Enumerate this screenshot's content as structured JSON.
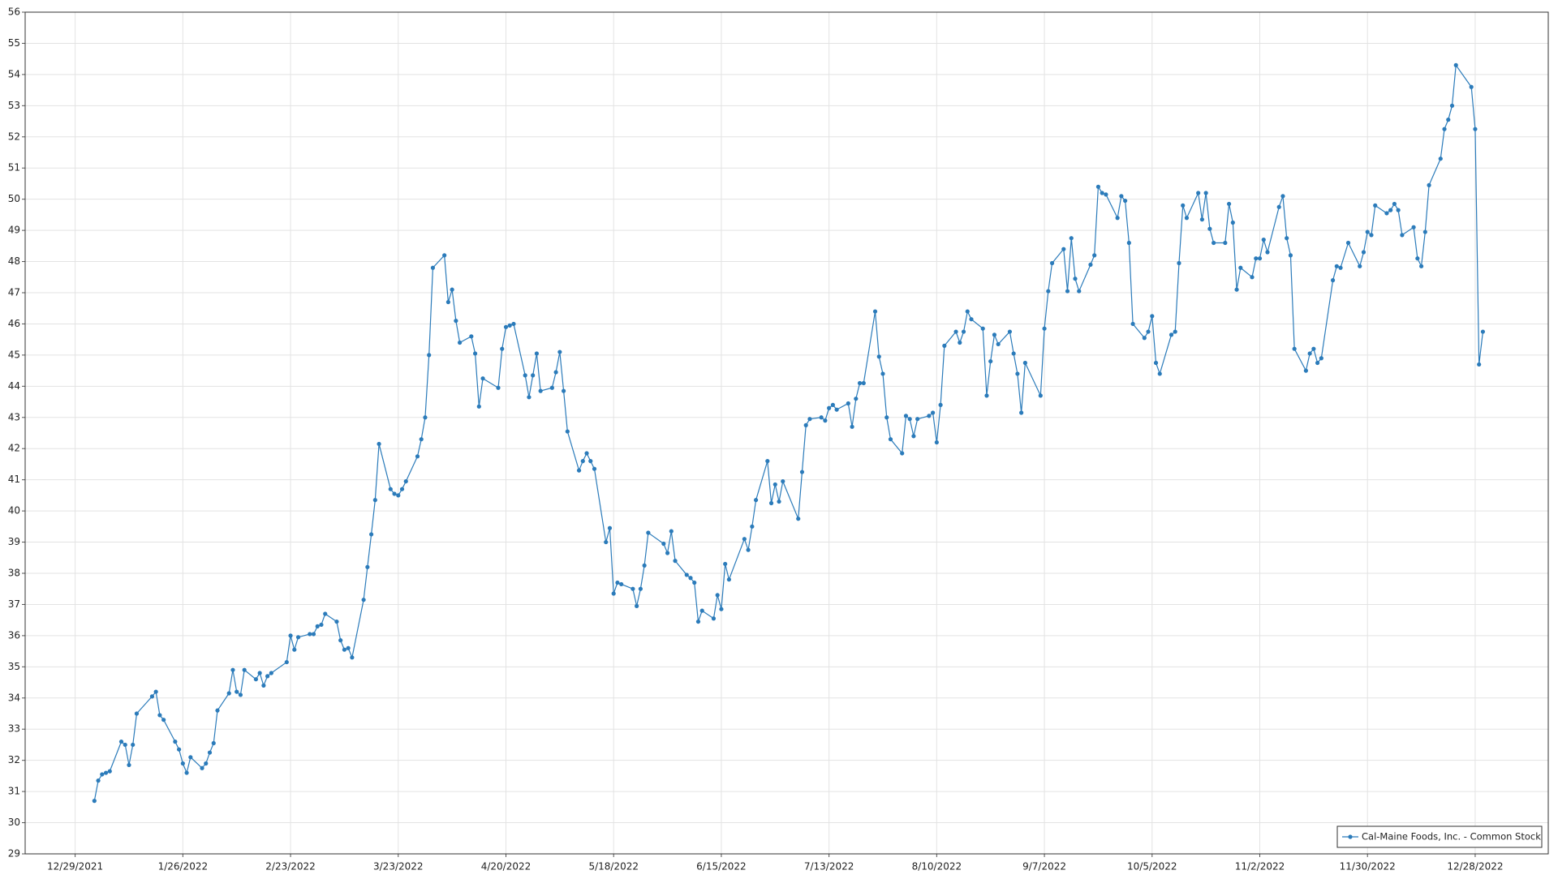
{
  "chart_data": {
    "type": "line",
    "x": [
      "1/3/2022",
      "1/4/2022",
      "1/5/2022",
      "1/6/2022",
      "1/7/2022",
      "1/10/2022",
      "1/11/2022",
      "1/12/2022",
      "1/13/2022",
      "1/14/2022",
      "1/18/2022",
      "1/19/2022",
      "1/20/2022",
      "1/21/2022",
      "1/24/2022",
      "1/25/2022",
      "1/26/2022",
      "1/27/2022",
      "1/28/2022",
      "1/31/2022",
      "2/1/2022",
      "2/2/2022",
      "2/3/2022",
      "2/4/2022",
      "2/7/2022",
      "2/8/2022",
      "2/9/2022",
      "2/10/2022",
      "2/11/2022",
      "2/14/2022",
      "2/15/2022",
      "2/16/2022",
      "2/17/2022",
      "2/18/2022",
      "2/22/2022",
      "2/23/2022",
      "2/24/2022",
      "2/25/2022",
      "2/28/2022",
      "3/1/2022",
      "3/2/2022",
      "3/3/2022",
      "3/4/2022",
      "3/7/2022",
      "3/8/2022",
      "3/9/2022",
      "3/10/2022",
      "3/11/2022",
      "3/14/2022",
      "3/15/2022",
      "3/16/2022",
      "3/17/2022",
      "3/18/2022",
      "3/21/2022",
      "3/22/2022",
      "3/23/2022",
      "3/24/2022",
      "3/25/2022",
      "3/28/2022",
      "3/29/2022",
      "3/30/2022",
      "3/31/2022",
      "4/1/2022",
      "4/4/2022",
      "4/5/2022",
      "4/6/2022",
      "4/7/2022",
      "4/8/2022",
      "4/11/2022",
      "4/12/2022",
      "4/13/2022",
      "4/14/2022",
      "4/18/2022",
      "4/19/2022",
      "4/20/2022",
      "4/21/2022",
      "4/22/2022",
      "4/25/2022",
      "4/26/2022",
      "4/27/2022",
      "4/28/2022",
      "4/29/2022",
      "5/2/2022",
      "5/3/2022",
      "5/4/2022",
      "5/5/2022",
      "5/6/2022",
      "5/9/2022",
      "5/10/2022",
      "5/11/2022",
      "5/12/2022",
      "5/13/2022",
      "5/16/2022",
      "5/17/2022",
      "5/18/2022",
      "5/19/2022",
      "5/20/2022",
      "5/23/2022",
      "5/24/2022",
      "5/25/2022",
      "5/26/2022",
      "5/27/2022",
      "5/31/2022",
      "6/1/2022",
      "6/2/2022",
      "6/3/2022",
      "6/6/2022",
      "6/7/2022",
      "6/8/2022",
      "6/9/2022",
      "6/10/2022",
      "6/13/2022",
      "6/14/2022",
      "6/15/2022",
      "6/16/2022",
      "6/17/2022",
      "6/21/2022",
      "6/22/2022",
      "6/23/2022",
      "6/24/2022",
      "6/27/2022",
      "6/28/2022",
      "6/29/2022",
      "6/30/2022",
      "7/1/2022",
      "7/5/2022",
      "7/6/2022",
      "7/7/2022",
      "7/8/2022",
      "7/11/2022",
      "7/12/2022",
      "7/13/2022",
      "7/14/2022",
      "7/15/2022",
      "7/18/2022",
      "7/19/2022",
      "7/20/2022",
      "7/21/2022",
      "7/22/2022",
      "7/25/2022",
      "7/26/2022",
      "7/27/2022",
      "7/28/2022",
      "7/29/2022",
      "8/1/2022",
      "8/2/2022",
      "8/3/2022",
      "8/4/2022",
      "8/5/2022",
      "8/8/2022",
      "8/9/2022",
      "8/10/2022",
      "8/11/2022",
      "8/12/2022",
      "8/15/2022",
      "8/16/2022",
      "8/17/2022",
      "8/18/2022",
      "8/19/2022",
      "8/22/2022",
      "8/23/2022",
      "8/24/2022",
      "8/25/2022",
      "8/26/2022",
      "8/29/2022",
      "8/30/2022",
      "8/31/2022",
      "9/1/2022",
      "9/2/2022",
      "9/6/2022",
      "9/7/2022",
      "9/8/2022",
      "9/9/2022",
      "9/12/2022",
      "9/13/2022",
      "9/14/2022",
      "9/15/2022",
      "9/16/2022",
      "9/19/2022",
      "9/20/2022",
      "9/21/2022",
      "9/22/2022",
      "9/23/2022",
      "9/26/2022",
      "9/27/2022",
      "9/28/2022",
      "9/29/2022",
      "9/30/2022",
      "10/3/2022",
      "10/4/2022",
      "10/5/2022",
      "10/6/2022",
      "10/7/2022",
      "10/10/2022",
      "10/11/2022",
      "10/12/2022",
      "10/13/2022",
      "10/14/2022",
      "10/17/2022",
      "10/18/2022",
      "10/19/2022",
      "10/20/2022",
      "10/21/2022",
      "10/24/2022",
      "10/25/2022",
      "10/26/2022",
      "10/27/2022",
      "10/28/2022",
      "10/31/2022",
      "11/1/2022",
      "11/2/2022",
      "11/3/2022",
      "11/4/2022",
      "11/7/2022",
      "11/8/2022",
      "11/9/2022",
      "11/10/2022",
      "11/11/2022",
      "11/14/2022",
      "11/15/2022",
      "11/16/2022",
      "11/17/2022",
      "11/18/2022",
      "11/21/2022",
      "11/22/2022",
      "11/23/2022",
      "11/25/2022",
      "11/28/2022",
      "11/29/2022",
      "11/30/2022",
      "12/1/2022",
      "12/2/2022",
      "12/5/2022",
      "12/6/2022",
      "12/7/2022",
      "12/8/2022",
      "12/9/2022",
      "12/12/2022",
      "12/13/2022",
      "12/14/2022",
      "12/15/2022",
      "12/16/2022",
      "12/19/2022",
      "12/20/2022",
      "12/21/2022",
      "12/22/2022",
      "12/23/2022",
      "12/27/2022",
      "12/28/2022",
      "12/29/2022",
      "12/30/2022"
    ],
    "series": [
      {
        "name": "Cal-Maine Foods, Inc. - Common Stock",
        "color": "#2b7bba",
        "values": [
          30.7,
          31.35,
          31.55,
          31.6,
          31.65,
          32.6,
          32.5,
          31.85,
          32.5,
          33.5,
          34.05,
          34.2,
          33.45,
          33.3,
          32.6,
          32.35,
          31.9,
          31.6,
          32.1,
          31.75,
          31.9,
          32.25,
          32.55,
          33.6,
          34.15,
          34.9,
          34.2,
          34.1,
          34.9,
          34.6,
          34.8,
          34.4,
          34.7,
          34.8,
          35.15,
          36.0,
          35.55,
          35.95,
          36.05,
          36.05,
          36.3,
          36.35,
          36.7,
          36.45,
          35.85,
          35.55,
          35.6,
          35.3,
          37.15,
          38.2,
          39.25,
          40.35,
          42.15,
          40.7,
          40.55,
          40.5,
          40.7,
          40.95,
          41.75,
          42.3,
          43.0,
          45.0,
          47.8,
          48.2,
          46.7,
          47.1,
          46.1,
          45.4,
          45.6,
          45.05,
          43.35,
          44.25,
          43.95,
          45.2,
          45.9,
          45.95,
          46.0,
          44.35,
          43.65,
          44.35,
          45.05,
          43.85,
          43.95,
          44.45,
          45.1,
          43.85,
          42.55,
          41.3,
          41.6,
          41.85,
          41.6,
          41.35,
          39.0,
          39.45,
          37.35,
          37.7,
          37.65,
          37.5,
          36.95,
          37.5,
          38.25,
          39.3,
          38.95,
          38.65,
          39.35,
          38.4,
          37.95,
          37.85,
          37.7,
          36.45,
          36.8,
          36.55,
          37.3,
          36.85,
          38.3,
          37.8,
          39.1,
          38.75,
          39.5,
          40.35,
          41.6,
          40.25,
          40.85,
          40.3,
          40.95,
          39.75,
          41.25,
          42.75,
          42.95,
          43.0,
          42.9,
          43.3,
          43.4,
          43.25,
          43.45,
          42.7,
          43.6,
          44.1,
          44.1,
          46.4,
          44.95,
          44.4,
          43.0,
          42.3,
          41.85,
          43.05,
          42.95,
          42.4,
          42.95,
          43.05,
          43.15,
          42.2,
          43.4,
          45.3,
          45.75,
          45.4,
          45.75,
          46.4,
          46.15,
          45.85,
          43.7,
          44.8,
          45.65,
          45.35,
          45.75,
          45.05,
          44.4,
          43.15,
          44.75,
          43.7,
          45.85,
          47.05,
          47.95,
          48.4,
          47.05,
          48.75,
          47.45,
          47.05,
          47.9,
          48.2,
          50.4,
          50.2,
          50.15,
          49.4,
          50.1,
          49.95,
          48.6,
          46.0,
          45.55,
          45.75,
          46.25,
          44.75,
          44.4,
          45.65,
          45.75,
          47.95,
          49.8,
          49.4,
          50.2,
          49.35,
          50.2,
          49.05,
          48.6,
          48.6,
          49.85,
          49.25,
          47.1,
          47.8,
          47.5,
          48.1,
          48.1,
          48.7,
          48.3,
          49.75,
          50.1,
          48.75,
          48.2,
          45.2,
          44.5,
          45.05,
          45.2,
          44.75,
          44.9,
          47.4,
          47.85,
          47.8,
          48.6,
          47.85,
          48.3,
          48.95,
          48.85,
          49.8,
          49.55,
          49.65,
          49.85,
          49.65,
          48.85,
          49.1,
          48.1,
          47.85,
          48.95,
          50.45,
          51.3,
          52.25,
          52.55,
          53.0,
          54.3,
          53.6,
          52.25,
          44.7,
          45.75
        ]
      }
    ],
    "xlim": [
      "12/16/2021",
      "1/16/2023"
    ],
    "xticks": [
      "12/29/2021",
      "1/26/2022",
      "2/23/2022",
      "3/23/2022",
      "4/20/2022",
      "5/18/2022",
      "6/15/2022",
      "7/13/2022",
      "8/10/2022",
      "9/7/2022",
      "10/5/2022",
      "11/2/2022",
      "11/30/2022",
      "12/28/2022"
    ],
    "ylim": [
      29,
      56
    ],
    "yticks": [
      29,
      30,
      31,
      32,
      33,
      34,
      35,
      36,
      37,
      38,
      39,
      40,
      41,
      42,
      43,
      44,
      45,
      46,
      47,
      48,
      49,
      50,
      51,
      52,
      53,
      54,
      55,
      56
    ],
    "grid": true,
    "legend": "lower right"
  }
}
